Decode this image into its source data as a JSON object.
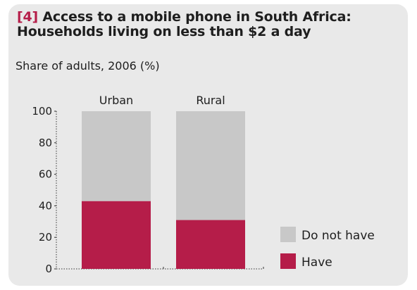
{
  "title": {
    "number": "[4]",
    "line1": "Access to a mobile phone in South Africa:",
    "line2": "Households living on less than $2 a day"
  },
  "subtitle": "Share of adults, 2006 (%)",
  "colors": {
    "have": "#b51d49",
    "do_not_have": "#c8c8c8",
    "background": "#e9e9e9",
    "text": "#1e1e1e"
  },
  "chart_data": {
    "type": "bar",
    "stacked": true,
    "categories": [
      "Urban",
      "Rural"
    ],
    "series": [
      {
        "name": "Have",
        "values": [
          43,
          31
        ]
      },
      {
        "name": "Do not have",
        "values": [
          57,
          69
        ]
      }
    ],
    "ylim": [
      0,
      100
    ],
    "yticks": [
      0,
      20,
      40,
      60,
      80,
      100
    ],
    "legend": [
      "Do not have",
      "Have"
    ],
    "legend_position": "bottom-right",
    "grid": false
  }
}
